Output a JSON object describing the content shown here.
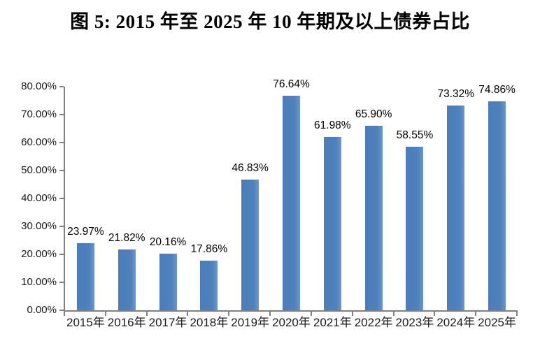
{
  "title": "图 5: 2015 年至 2025 年 10 年期及以上债券占比",
  "chart_data": {
    "type": "bar",
    "title": "图 5: 2015 年至 2025 年 10 年期及以上债券占比",
    "categories": [
      "2015年",
      "2016年",
      "2017年",
      "2018年",
      "2019年",
      "2020年",
      "2021年",
      "2022年",
      "2023年",
      "2024年",
      "2025年"
    ],
    "values": [
      23.97,
      21.82,
      20.16,
      17.86,
      46.83,
      76.64,
      61.98,
      65.9,
      58.55,
      73.32,
      74.86
    ],
    "data_labels": [
      "23.97%",
      "21.82%",
      "20.16%",
      "17.86%",
      "46.83%",
      "76.64%",
      "61.98%",
      "65.90%",
      "58.55%",
      "73.32%",
      "74.86%"
    ],
    "xlabel": "",
    "ylabel": "",
    "ylim": [
      0,
      80
    ],
    "y_tick_step": 10,
    "y_tick_labels": [
      "0.00%",
      "10.00%",
      "20.00%",
      "30.00%",
      "40.00%",
      "50.00%",
      "60.00%",
      "70.00%",
      "80.00%"
    ],
    "grid": false,
    "legend_position": "none",
    "bar_color": "#4f81bd",
    "axis_color": "#808080",
    "label_color": "#000000"
  }
}
